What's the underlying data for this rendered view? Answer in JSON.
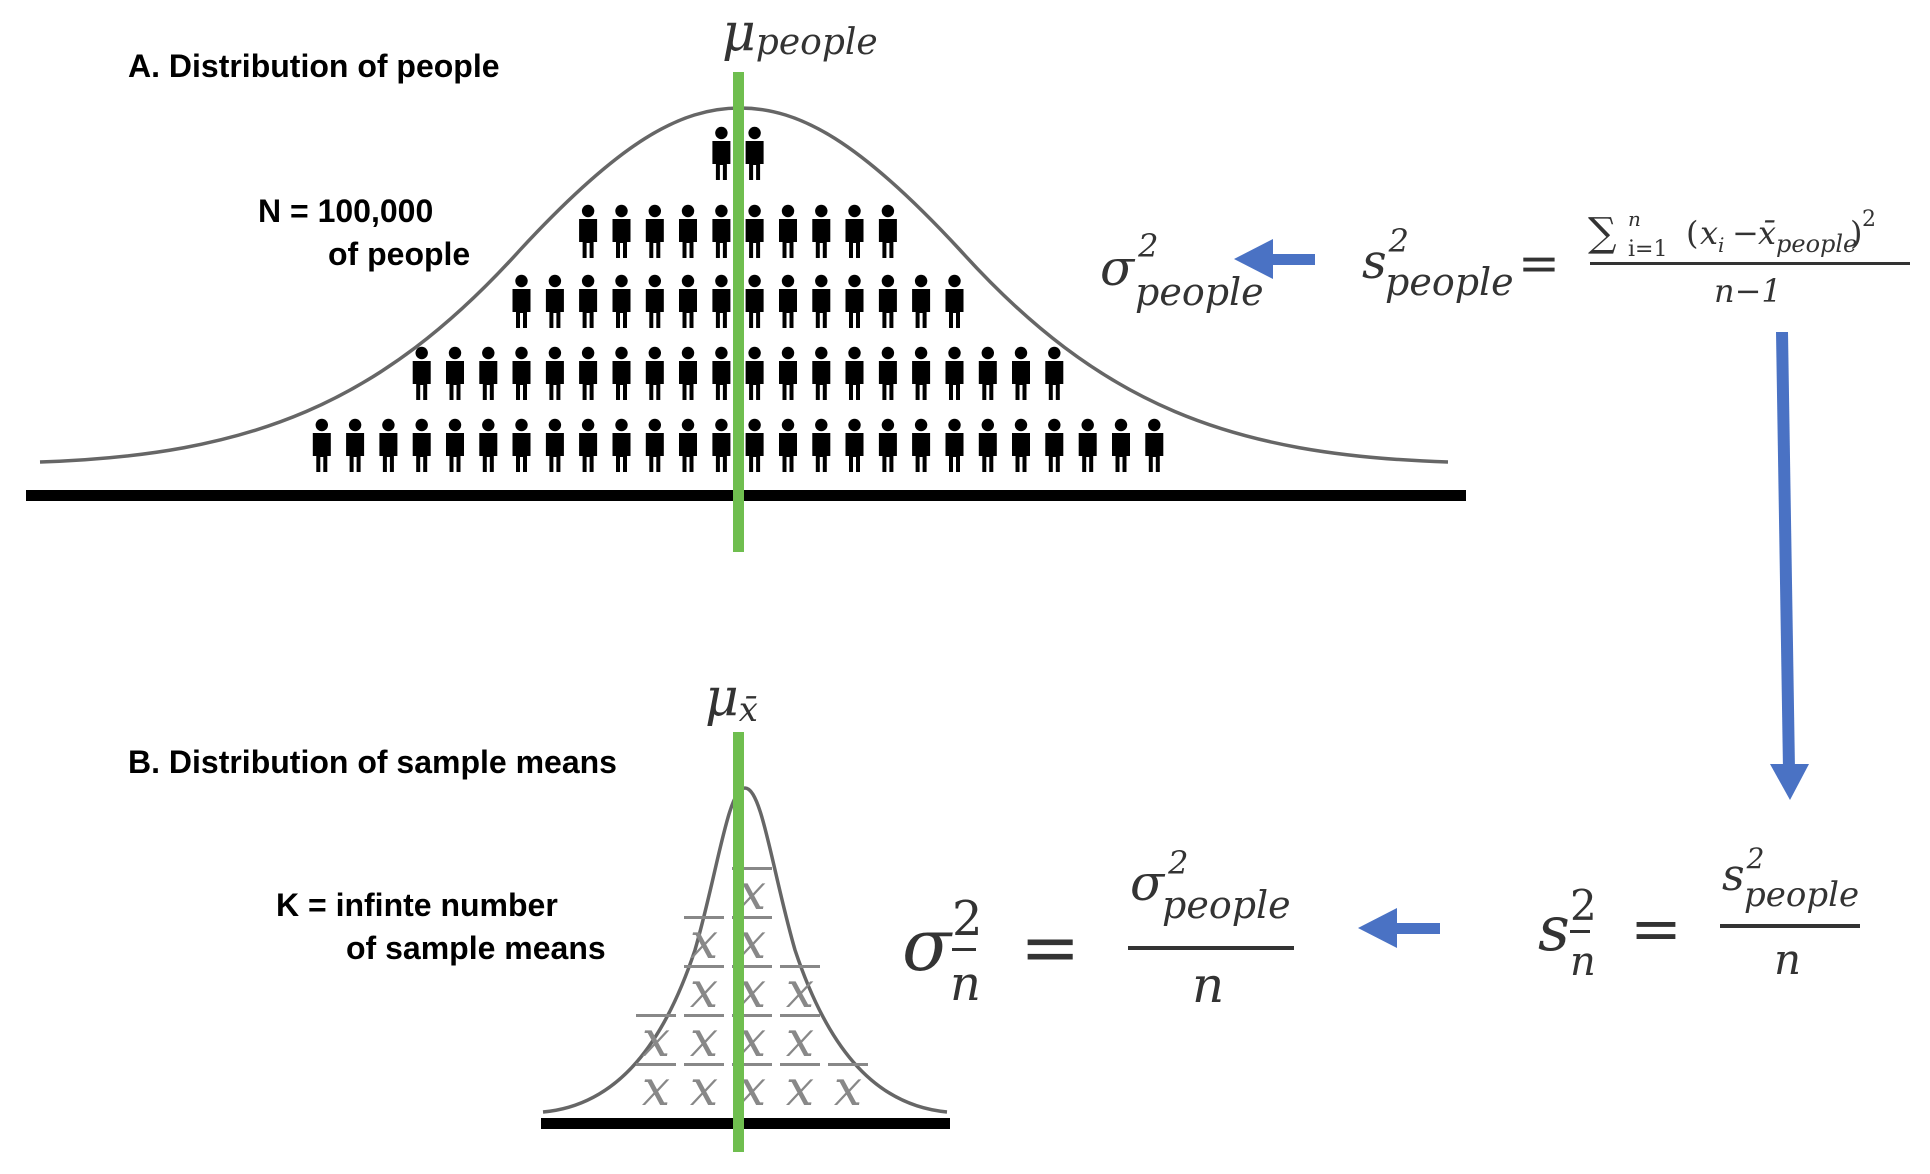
{
  "panel_a": {
    "title": "A. Distribution of people",
    "count_line1": "N = 100,000",
    "count_line2": "of people",
    "mean_symbol": "μ",
    "mean_subscript": "people",
    "people_rows": [
      2,
      10,
      14,
      20,
      26
    ]
  },
  "panel_b": {
    "title": "B. Distribution of sample means",
    "count_line1": "K = infinte number",
    "count_line2": "of sample means",
    "mean_symbol": "μ",
    "mean_subscript": "x̄",
    "sample_mean_symbol": "x",
    "stacks": [
      2,
      4,
      5,
      3,
      1
    ]
  },
  "formulas": {
    "sigma": "σ",
    "s": "s",
    "square": "2",
    "people": "people",
    "xbar": "x̄",
    "equals": "=",
    "sum_symbol": "∑",
    "sum_lower": "i=1",
    "sum_upper": "n",
    "sum_body_open": "(",
    "sum_xi": "x",
    "sum_i": "i",
    "sum_minus": "−",
    "sum_xbar": "x̄",
    "sum_close": ")",
    "n_minus_1": "n−1",
    "n": "n"
  },
  "colors": {
    "mean_line": "#6fbe4f",
    "arrow": "#4a72c4",
    "curve": "#666666",
    "baseline": "#000000",
    "formula_text": "#333333",
    "xbar_glyph": "#888888"
  }
}
